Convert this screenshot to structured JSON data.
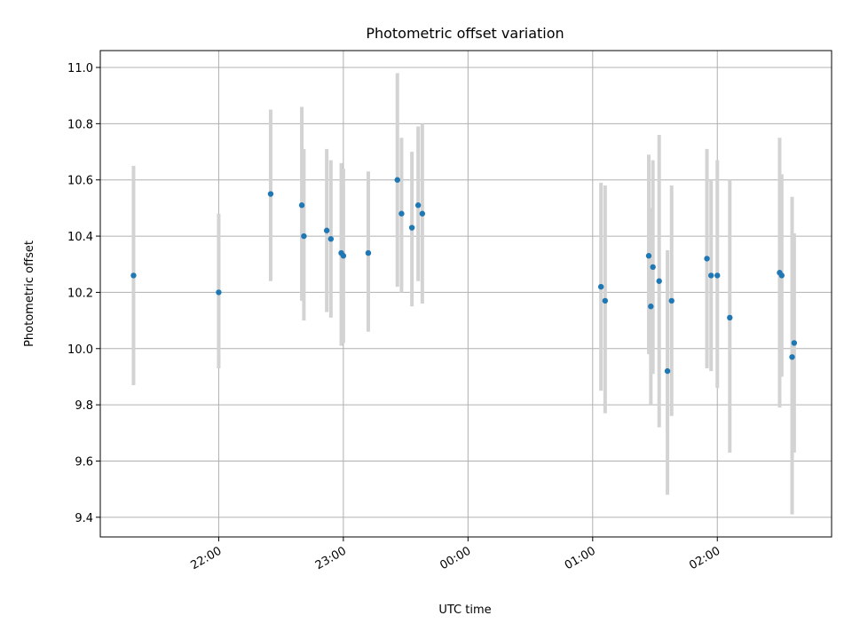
{
  "chart_data": {
    "type": "scatter",
    "title": "Photometric offset variation",
    "xlabel": "UTC time",
    "ylabel": "Photometric offset",
    "grid": true,
    "x_axis": {
      "kind": "time",
      "range": [
        "21:03",
        "02:55"
      ],
      "ticks": [
        {
          "t": "22:00",
          "label": "22:00"
        },
        {
          "t": "23:00",
          "label": "23:00"
        },
        {
          "t": "00:00",
          "label": "00:00"
        },
        {
          "t": "01:00",
          "label": "01:00"
        },
        {
          "t": "02:00",
          "label": "02:00"
        }
      ]
    },
    "y_axis": {
      "range": [
        9.33,
        11.06
      ],
      "ticks": [
        9.4,
        9.6,
        9.8,
        10.0,
        10.2,
        10.4,
        10.6,
        10.8,
        11.0
      ],
      "tick_labels": [
        "9.4",
        "9.6",
        "9.8",
        "10.0",
        "10.2",
        "10.4",
        "10.6",
        "10.8",
        "11.0"
      ]
    },
    "colors": {
      "point": "#1f77b4",
      "error_bar": "#d3d3d3",
      "grid": "#b0b0b0"
    },
    "points": [
      {
        "t": "21:19",
        "y": 10.26,
        "lo": 9.87,
        "hi": 10.65
      },
      {
        "t": "22:00",
        "y": 10.2,
        "lo": 9.93,
        "hi": 10.48
      },
      {
        "t": "22:25",
        "y": 10.55,
        "lo": 10.24,
        "hi": 10.85
      },
      {
        "t": "22:40",
        "y": 10.51,
        "lo": 10.17,
        "hi": 10.86
      },
      {
        "t": "22:41",
        "y": 10.4,
        "lo": 10.1,
        "hi": 10.71
      },
      {
        "t": "22:52",
        "y": 10.42,
        "lo": 10.13,
        "hi": 10.71
      },
      {
        "t": "22:54",
        "y": 10.39,
        "lo": 10.11,
        "hi": 10.67
      },
      {
        "t": "22:59",
        "y": 10.34,
        "lo": 10.01,
        "hi": 10.66
      },
      {
        "t": "23:00",
        "y": 10.33,
        "lo": 10.02,
        "hi": 10.64
      },
      {
        "t": "23:12",
        "y": 10.34,
        "lo": 10.06,
        "hi": 10.63
      },
      {
        "t": "23:26",
        "y": 10.6,
        "lo": 10.22,
        "hi": 10.98
      },
      {
        "t": "23:28",
        "y": 10.48,
        "lo": 10.2,
        "hi": 10.75
      },
      {
        "t": "23:33",
        "y": 10.43,
        "lo": 10.15,
        "hi": 10.7
      },
      {
        "t": "23:36",
        "y": 10.51,
        "lo": 10.24,
        "hi": 10.79
      },
      {
        "t": "23:38",
        "y": 10.48,
        "lo": 10.16,
        "hi": 10.8
      },
      {
        "t": "01:04",
        "y": 10.22,
        "lo": 9.85,
        "hi": 10.59
      },
      {
        "t": "01:06",
        "y": 10.17,
        "lo": 9.77,
        "hi": 10.58
      },
      {
        "t": "01:27",
        "y": 10.33,
        "lo": 9.98,
        "hi": 10.69
      },
      {
        "t": "01:28",
        "y": 10.15,
        "lo": 9.8,
        "hi": 10.5
      },
      {
        "t": "01:29",
        "y": 10.29,
        "lo": 9.91,
        "hi": 10.67
      },
      {
        "t": "01:32",
        "y": 10.24,
        "lo": 9.72,
        "hi": 10.76
      },
      {
        "t": "01:36",
        "y": 9.92,
        "lo": 9.48,
        "hi": 10.35
      },
      {
        "t": "01:38",
        "y": 10.17,
        "lo": 9.76,
        "hi": 10.58
      },
      {
        "t": "01:55",
        "y": 10.32,
        "lo": 9.93,
        "hi": 10.71
      },
      {
        "t": "01:57",
        "y": 10.26,
        "lo": 9.92,
        "hi": 10.6
      },
      {
        "t": "02:00",
        "y": 10.26,
        "lo": 9.86,
        "hi": 10.67
      },
      {
        "t": "02:06",
        "y": 10.11,
        "lo": 9.63,
        "hi": 10.6
      },
      {
        "t": "02:30",
        "y": 10.27,
        "lo": 9.79,
        "hi": 10.75
      },
      {
        "t": "02:31",
        "y": 10.26,
        "lo": 9.9,
        "hi": 10.62
      },
      {
        "t": "02:36",
        "y": 9.97,
        "lo": 9.41,
        "hi": 10.54
      },
      {
        "t": "02:37",
        "y": 10.02,
        "lo": 9.63,
        "hi": 10.41
      }
    ]
  }
}
